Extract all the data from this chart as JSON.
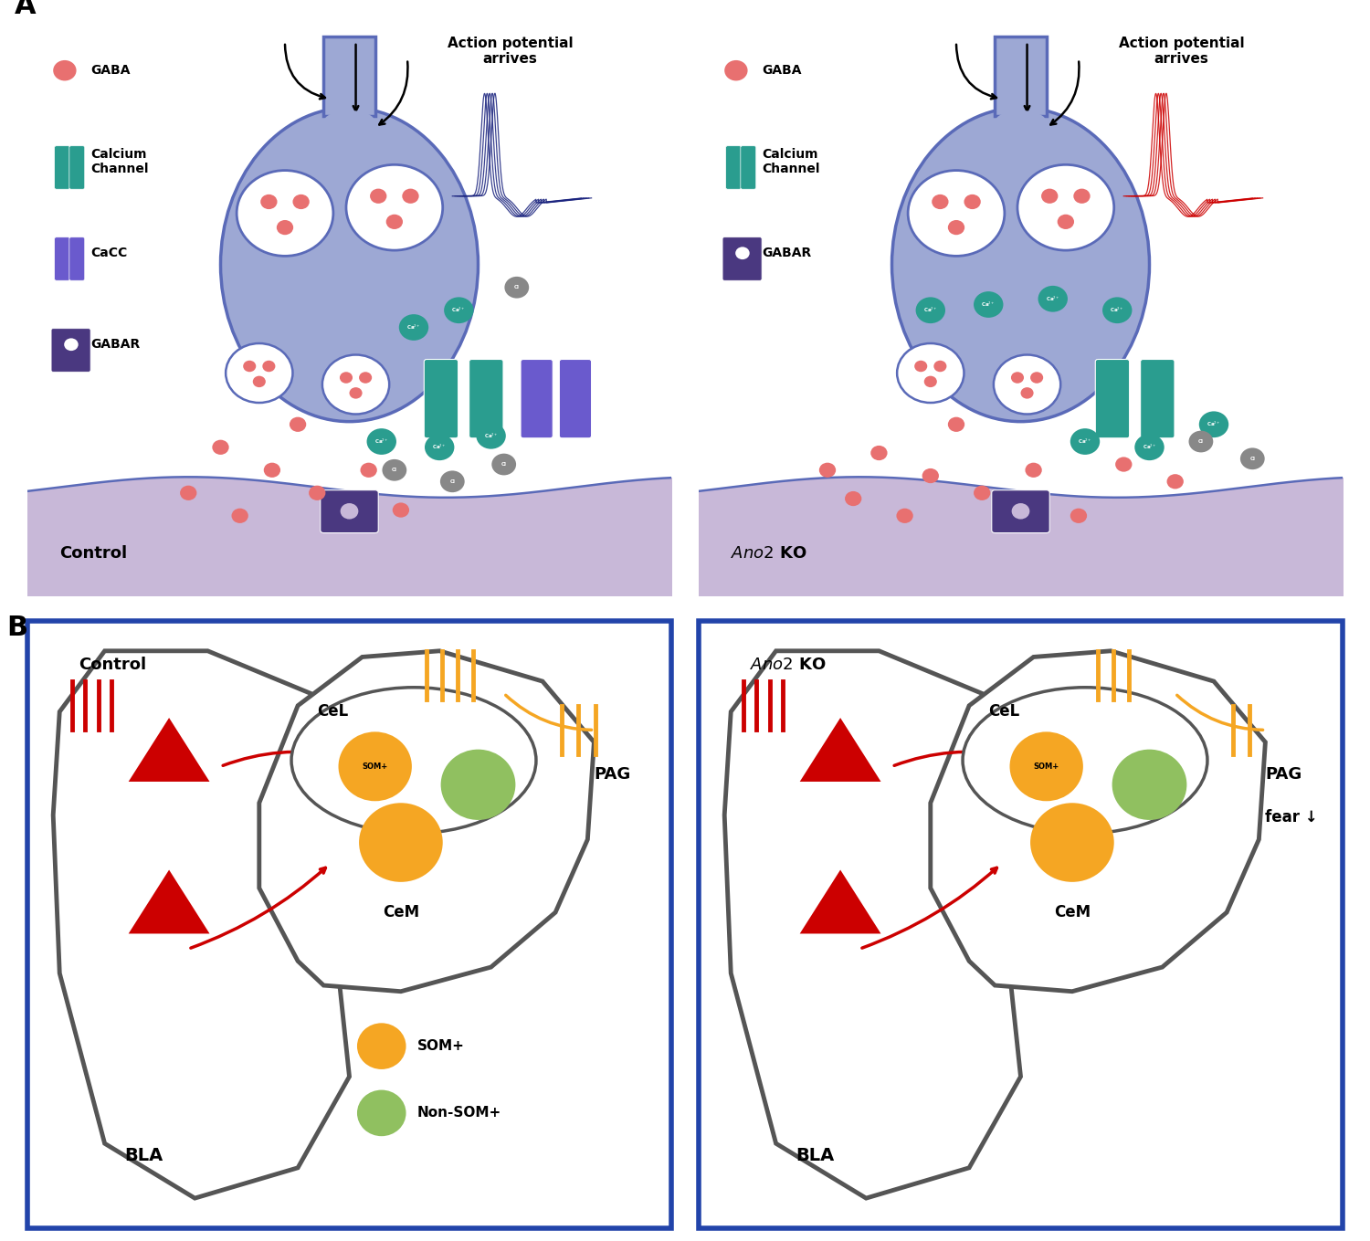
{
  "panel_A_label": "A",
  "panel_B_label": "B",
  "control_label": "Control",
  "ano2ko_label": "Ano2 KO",
  "action_potential_label": "Action potential\narrives",
  "legend_gaba": "GABA",
  "legend_calcium_channel": "Calcium\nChannel",
  "legend_cacc": "CaCC",
  "legend_gabar": "GABAR",
  "neuron_body_color": "#9da8d4",
  "neuron_border_color": "#5a6ab8",
  "postsynaptic_color": "#c8b8d8",
  "gaba_dot_color": "#e87070",
  "calcium_channel_color": "#2a9d8f",
  "cacc_color": "#6a5acd",
  "gabar_color": "#4a3880",
  "calcium_ion_color": "#2a9d8f",
  "action_potential_color_control": "#1a237e",
  "action_potential_color_ko": "#cc0000",
  "BLA_label": "BLA",
  "CeL_label": "CeL",
  "CeM_label": "CeM",
  "PAG_label": "PAG",
  "SOM_plus_label": "SOM+",
  "non_som_label": "Non-SOM+",
  "fear_label": "fear ↓",
  "som_color": "#f5a623",
  "non_som_color": "#90c060",
  "amygdala_outline_color": "#555555",
  "red_arrow_color": "#cc0000",
  "orange_line_color": "#f5a623",
  "blue_synapse_color": "#4488cc",
  "border_color": "#2244aa",
  "bg_color": "#ffffff"
}
